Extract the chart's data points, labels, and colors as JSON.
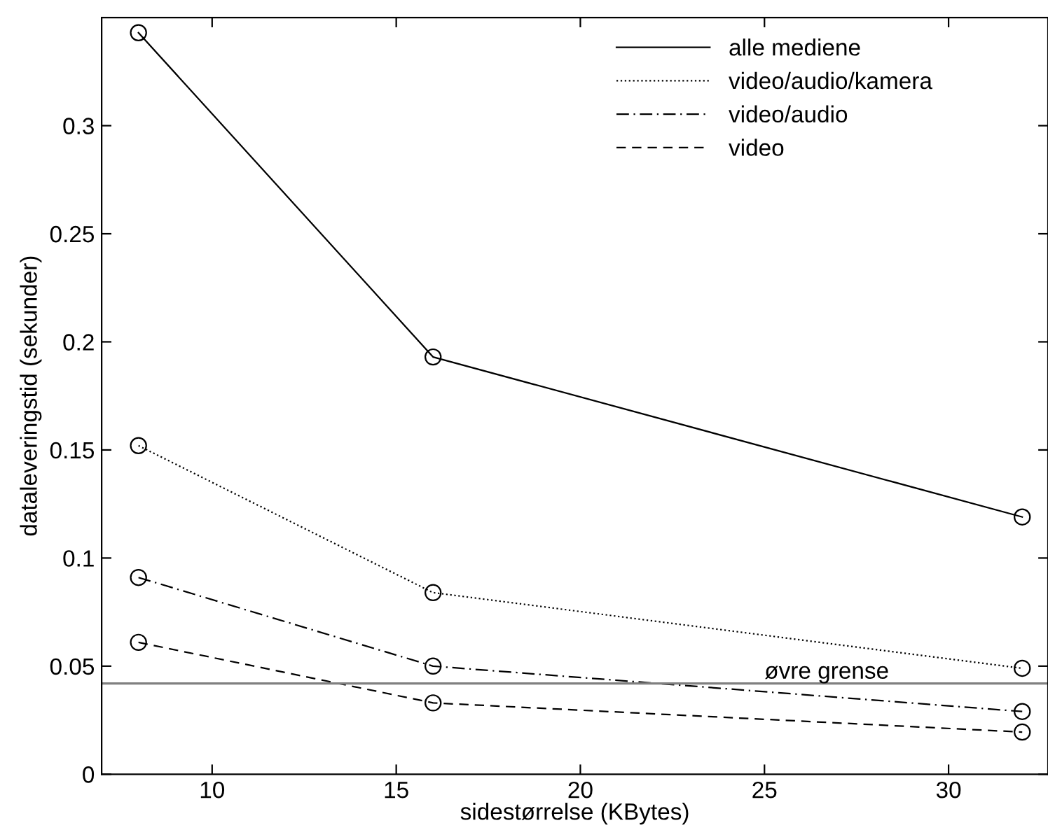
{
  "chart_data": {
    "type": "line",
    "xlabel": "sidestørrelse (KBytes)",
    "ylabel": "dataleveringstid (sekunder)",
    "x": [
      8,
      16,
      32
    ],
    "series": [
      {
        "name": "alle mediene",
        "color": "#000000",
        "line_style": "solid",
        "values": [
          0.343,
          0.193,
          0.119
        ]
      },
      {
        "name": "video/audio/kamera",
        "color": "#000000",
        "line_style": "dotted",
        "values": [
          0.152,
          0.084,
          0.049
        ]
      },
      {
        "name": "video/audio",
        "color": "#000000",
        "line_style": "dashdot",
        "values": [
          0.091,
          0.05,
          0.029
        ]
      },
      {
        "name": "video",
        "color": "#000000",
        "line_style": "dashed",
        "values": [
          0.061,
          0.033,
          0.0195
        ]
      }
    ],
    "marker": "circle",
    "xlim": [
      7,
      32.7
    ],
    "ylim": [
      0,
      0.35
    ],
    "xticks": [
      10,
      15,
      20,
      25,
      30
    ],
    "yticks": [
      0,
      0.05,
      0.1,
      0.15,
      0.2,
      0.25,
      0.3
    ],
    "ref_lines": [
      {
        "axis": "y",
        "value": 0.042,
        "label": "øvre grense",
        "color": "#808080",
        "line_style": "solid"
      }
    ],
    "grid": false,
    "legend": "top right"
  }
}
